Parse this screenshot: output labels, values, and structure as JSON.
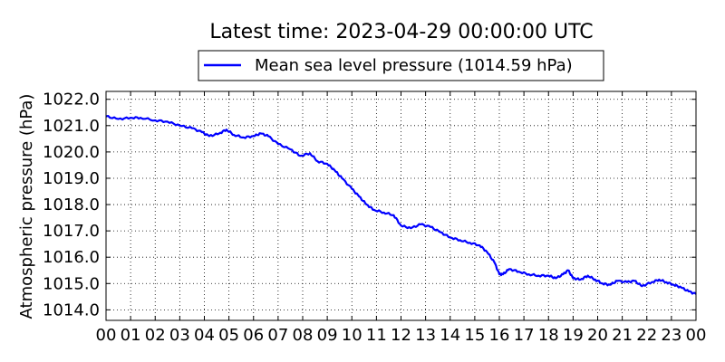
{
  "chart_data": {
    "type": "line",
    "title": "Latest time: 2023-04-29 00:00:00 UTC",
    "ylabel": "Atmospheric pressure (hPa)",
    "xlabel": "",
    "ylim": [
      1013.6,
      1022.3
    ],
    "xlim": [
      0,
      24
    ],
    "grid": true,
    "legend_position": "top-center, above plot",
    "x_ticks": [
      "00",
      "01",
      "02",
      "03",
      "04",
      "05",
      "06",
      "07",
      "08",
      "09",
      "10",
      "11",
      "12",
      "13",
      "14",
      "15",
      "16",
      "17",
      "18",
      "19",
      "20",
      "21",
      "22",
      "23",
      "00"
    ],
    "y_ticks": [
      "1014.0",
      "1015.0",
      "1016.0",
      "1017.0",
      "1018.0",
      "1019.0",
      "1020.0",
      "1021.0",
      "1022.0"
    ],
    "series": [
      {
        "name": "Mean sea level pressure (1014.59 hPa)",
        "color": "#0000ff",
        "x": [
          0,
          0.5,
          1,
          1.4,
          2,
          2.5,
          3,
          3.5,
          3.9,
          4.2,
          4.6,
          4.9,
          5.2,
          5.6,
          6,
          6.3,
          6.6,
          7,
          7.5,
          7.9,
          8.3,
          8.6,
          9,
          9.3,
          9.6,
          10,
          10.3,
          10.6,
          10.9,
          11.3,
          11.7,
          12,
          12.4,
          12.8,
          13.2,
          13.6,
          14,
          14.4,
          14.8,
          15.2,
          15.5,
          15.8,
          16,
          16.15,
          16.4,
          16.8,
          17.2,
          17.6,
          18,
          18.3,
          18.6,
          18.8,
          19,
          19.3,
          19.6,
          19.9,
          20.2,
          20.5,
          20.8,
          21.2,
          21.5,
          21.8,
          22.2,
          22.5,
          22.8,
          23.1,
          23.4,
          23.7,
          24
        ],
        "y": [
          1021.35,
          1021.25,
          1021.3,
          1021.3,
          1021.2,
          1021.15,
          1021.0,
          1020.9,
          1020.75,
          1020.6,
          1020.7,
          1020.85,
          1020.65,
          1020.55,
          1020.6,
          1020.7,
          1020.6,
          1020.3,
          1020.1,
          1019.85,
          1019.95,
          1019.65,
          1019.55,
          1019.3,
          1019.0,
          1018.6,
          1018.3,
          1018.0,
          1017.8,
          1017.7,
          1017.6,
          1017.2,
          1017.1,
          1017.25,
          1017.15,
          1016.95,
          1016.75,
          1016.65,
          1016.55,
          1016.45,
          1016.2,
          1015.8,
          1015.35,
          1015.35,
          1015.55,
          1015.45,
          1015.35,
          1015.3,
          1015.3,
          1015.2,
          1015.35,
          1015.5,
          1015.2,
          1015.15,
          1015.3,
          1015.15,
          1015.0,
          1014.95,
          1015.1,
          1015.05,
          1015.1,
          1014.9,
          1015.05,
          1015.15,
          1015.05,
          1014.95,
          1014.85,
          1014.7,
          1014.6
        ]
      }
    ]
  }
}
